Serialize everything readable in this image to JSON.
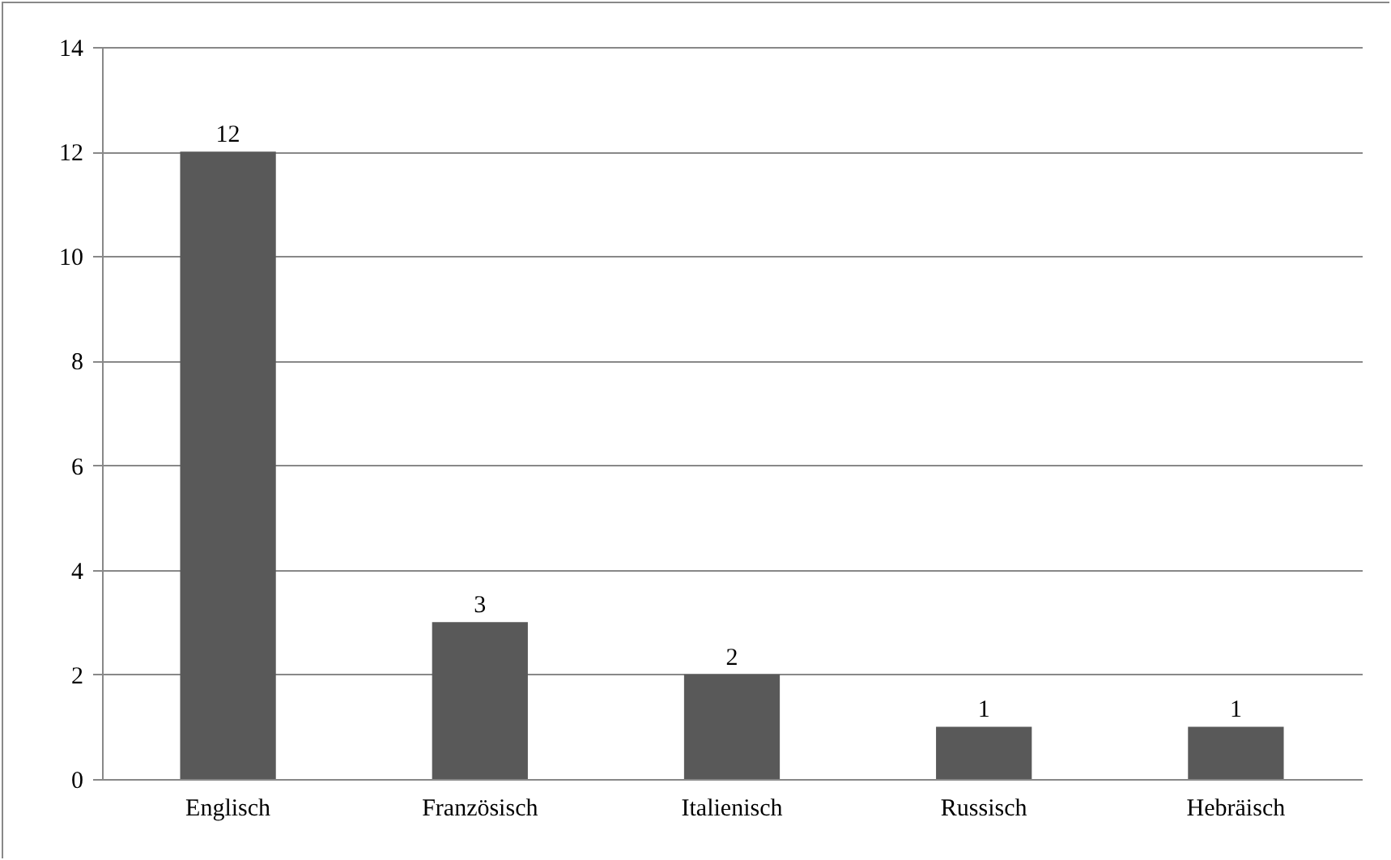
{
  "chart_data": {
    "type": "bar",
    "categories": [
      "Englisch",
      "Französisch",
      "Italienisch",
      "Russisch",
      "Hebräisch"
    ],
    "values": [
      12,
      3,
      2,
      1,
      1
    ],
    "color": "#595959",
    "ylim": [
      0,
      14
    ],
    "yticks": [
      0,
      2,
      4,
      6,
      8,
      10,
      12,
      14
    ],
    "grid": "y",
    "data_labels": true
  }
}
